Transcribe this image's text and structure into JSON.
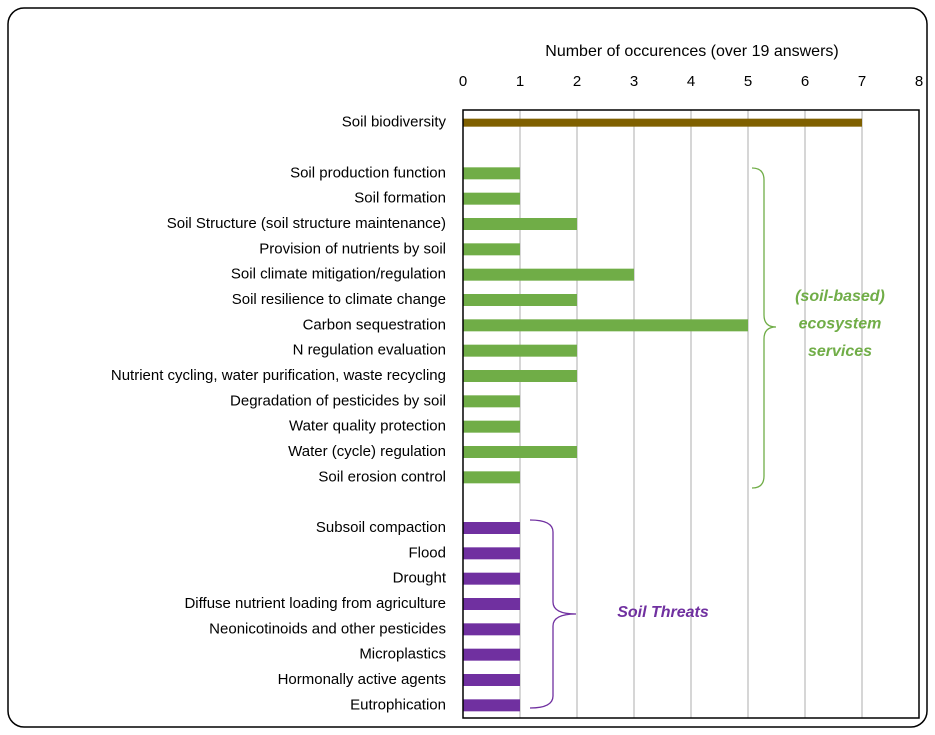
{
  "chart_data": {
    "type": "barh",
    "xlabel": "Number of occurences (over 19 answers)",
    "categories": [
      "Soil biodiversity",
      null,
      "Soil production function",
      "Soil formation",
      "Soil Structure (soil structure maintenance)",
      "Provision of nutrients by soil",
      "Soil climate mitigation/regulation",
      "Soil resilience to climate change",
      "Carbon sequestration",
      "N regulation evaluation",
      "Nutrient cycling, water purification, waste recycling",
      "Degradation of pesticides by soil",
      "Water quality protection",
      "Water (cycle) regulation",
      "Soil erosion control",
      null,
      "Subsoil compaction",
      "Flood",
      "Drought",
      "Diffuse nutrient loading from agriculture",
      "Neonicotinoids and other pesticides",
      "Microplastics",
      "Hormonally active agents",
      "Eutrophication"
    ],
    "values": [
      7,
      null,
      1,
      1,
      2,
      1,
      3,
      2,
      5,
      2,
      2,
      1,
      1,
      2,
      1,
      null,
      1,
      1,
      1,
      1,
      1,
      1,
      1,
      1
    ],
    "colors": [
      "#7f6000",
      null,
      "#70ad47",
      "#70ad47",
      "#70ad47",
      "#70ad47",
      "#70ad47",
      "#70ad47",
      "#70ad47",
      "#70ad47",
      "#70ad47",
      "#70ad47",
      "#70ad47",
      "#70ad47",
      "#70ad47",
      null,
      "#7030a0",
      "#7030a0",
      "#7030a0",
      "#7030a0",
      "#7030a0",
      "#7030a0",
      "#7030a0",
      "#7030a0"
    ],
    "xlim": [
      0,
      8
    ],
    "xticks": [
      0,
      1,
      2,
      3,
      4,
      5,
      6,
      7,
      8
    ],
    "grid": true,
    "annotations": [
      {
        "lines": [
          "(soil-based)",
          "ecosystem",
          "services"
        ],
        "color": "#70ad47"
      },
      {
        "lines": [
          "Soil Threats"
        ],
        "color": "#7030a0"
      }
    ]
  }
}
